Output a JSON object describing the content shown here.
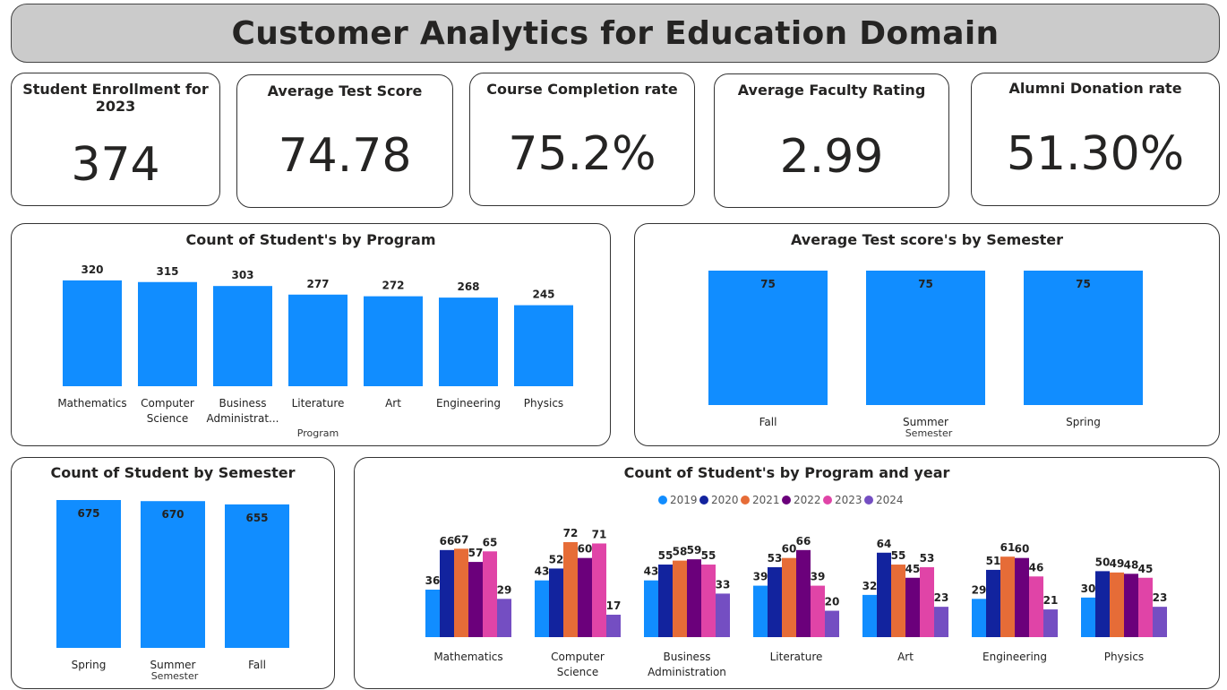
{
  "header": {
    "title": "Customer Analytics for Education Domain"
  },
  "kpis": [
    {
      "title": "Student Enrollment for 2023",
      "value": "374"
    },
    {
      "title": "Average Test Score",
      "value": "74.78"
    },
    {
      "title": "Course Completion rate",
      "value": "75.2%"
    },
    {
      "title": "Average Faculty Rating",
      "value": "2.99"
    },
    {
      "title": "Alumni Donation rate",
      "value": "51.30%"
    }
  ],
  "colors": {
    "bar": "#118DFF",
    "series": [
      "#118DFF",
      "#12239E",
      "#E66C37",
      "#6B007B",
      "#E044A7",
      "#744EC2"
    ]
  },
  "chart_data": [
    {
      "type": "bar",
      "title": "Count of Student's by Program",
      "xlabel": "Program",
      "categories": [
        "Mathematics",
        "Computer Science",
        "Business Administrat...",
        "Literature",
        "Art",
        "Engineering",
        "Physics"
      ],
      "values": [
        320,
        315,
        303,
        277,
        272,
        268,
        245
      ],
      "ylim": [
        0,
        420
      ]
    },
    {
      "type": "bar",
      "title": "Average Test score's by Semester",
      "xlabel": "Semester",
      "categories": [
        "Fall",
        "Summer",
        "Spring"
      ],
      "values": [
        75,
        75,
        75
      ],
      "ylim": [
        0,
        75
      ]
    },
    {
      "type": "bar",
      "title": "Count of Student by Semester",
      "xlabel": "Semester",
      "categories": [
        "Spring",
        "Summer",
        "Fall"
      ],
      "values": [
        675,
        670,
        655
      ],
      "ylim": [
        0,
        675
      ]
    },
    {
      "type": "bar",
      "title": "Count of Student's by Program and year",
      "xlabel": "",
      "legend": "top-center",
      "categories": [
        "Mathematics",
        "Computer Science",
        "Business Administration",
        "Literature",
        "Art",
        "Engineering",
        "Physics"
      ],
      "series": [
        {
          "name": "2019",
          "values": [
            36,
            43,
            43,
            39,
            32,
            29,
            30
          ]
        },
        {
          "name": "2020",
          "values": [
            66,
            52,
            55,
            53,
            64,
            51,
            50
          ]
        },
        {
          "name": "2021",
          "values": [
            67,
            72,
            58,
            60,
            55,
            61,
            49
          ]
        },
        {
          "name": "2022",
          "values": [
            57,
            60,
            59,
            66,
            45,
            60,
            48
          ]
        },
        {
          "name": "2023",
          "values": [
            65,
            71,
            55,
            39,
            53,
            46,
            45
          ]
        },
        {
          "name": "2024",
          "values": [
            29,
            17,
            33,
            20,
            23,
            21,
            23
          ]
        }
      ],
      "ylim": [
        0,
        72
      ]
    }
  ]
}
